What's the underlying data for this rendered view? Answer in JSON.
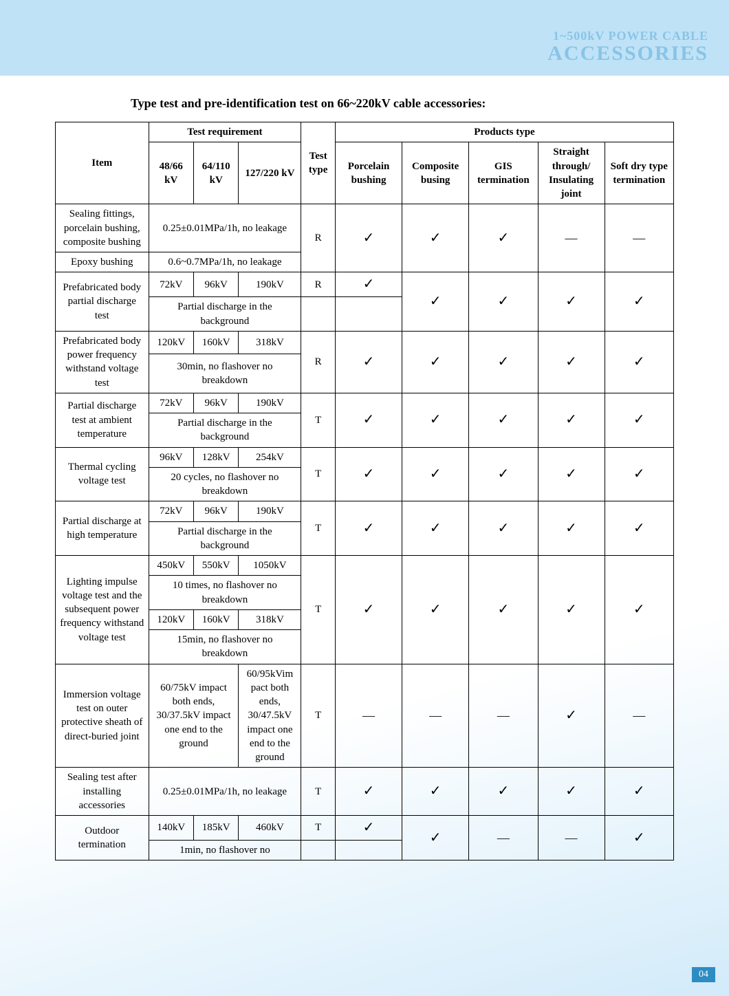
{
  "header": {
    "line1": "1~500kV POWER CABLE",
    "line2": "ACCESSORIES"
  },
  "title": "Type test and pre-identification test on 66~220kV cable accessories:",
  "page_number": "04",
  "check": "√",
  "dash": "—",
  "hdr": {
    "item": "Item",
    "test_req": "Test requirement",
    "test_type": "Test type",
    "prod_type": "Products type",
    "kv1": "48/66 kV",
    "kv2": "64/110 kV",
    "kv3": "127/220 kV",
    "p1": "Porcelain bushing",
    "p2": "Composite busing",
    "p3": "GIS termination",
    "p4": "Straight through/ Insulating joint",
    "p5": "Soft dry type termination"
  },
  "r1": {
    "item": "Sealing fittings, porcelain bushing, composite bushing",
    "req": "0.25±0.01MPa/1h, no leakage"
  },
  "r1b": {
    "item": "Epoxy bushing",
    "req": "0.6~0.7MPa/1h, no leakage"
  },
  "r1_tt": "R",
  "r1_c": [
    "✓",
    "✓",
    "✓",
    "—",
    "—"
  ],
  "r2": {
    "item": "Prefabricated body partial discharge test",
    "v": [
      "72kV",
      "96kV",
      "190kV"
    ],
    "note": "Partial discharge in the background",
    "tt": "R"
  },
  "r2_c": [
    "✓",
    "✓",
    "✓",
    "✓",
    "✓"
  ],
  "r3": {
    "item": "Prefabricated body power frequency withstand voltage test",
    "v": [
      "120kV",
      "160kV",
      "318kV"
    ],
    "note": "30min, no flashover no breakdown",
    "tt": "R"
  },
  "r3_c": [
    "✓",
    "✓",
    "✓",
    "✓",
    "✓"
  ],
  "r4": {
    "item": "Partial discharge test at ambient temperature",
    "v": [
      "72kV",
      "96kV",
      "190kV"
    ],
    "note": "Partial discharge in the background",
    "tt": "T"
  },
  "r4_c": [
    "✓",
    "✓",
    "✓",
    "✓",
    "✓"
  ],
  "r5": {
    "item": "Thermal cycling voltage test",
    "v": [
      "96kV",
      "128kV",
      "254kV"
    ],
    "note": "20 cycles, no flashover no breakdown",
    "tt": "T"
  },
  "r5_c": [
    "✓",
    "✓",
    "✓",
    "✓",
    "✓"
  ],
  "r6": {
    "item": "Partial discharge at high temperature",
    "v": [
      "72kV",
      "96kV",
      "190kV"
    ],
    "note": "Partial discharge in the background",
    "tt": "T"
  },
  "r6_c": [
    "✓",
    "✓",
    "✓",
    "✓",
    "✓"
  ],
  "r7": {
    "item": "Lighting impulse voltage test and the subsequent power frequency withstand voltage test",
    "va": [
      "450kV",
      "550kV",
      "1050kV"
    ],
    "notea": "10 times, no flashover no breakdown",
    "vb": [
      "120kV",
      "160kV",
      "318kV"
    ],
    "noteb": "15min, no flashover no breakdown",
    "tt": "T"
  },
  "r7_c": [
    "✓",
    "✓",
    "✓",
    "✓",
    "✓"
  ],
  "r8": {
    "item": "Immersion voltage test on outer protective sheath of direct-buried joint",
    "reqa": "60/75kV impact both ends, 30/37.5kV impact one end to the ground",
    "reqb": "60/95kVim pact both ends, 30/47.5kV impact one end to the ground",
    "tt": "T"
  },
  "r8_c": [
    "—",
    "—",
    "—",
    "✓",
    "—"
  ],
  "r9": {
    "item": "Sealing test after installing accessories",
    "req": "0.25±0.01MPa/1h, no leakage",
    "tt": "T"
  },
  "r9_c": [
    "✓",
    "✓",
    "✓",
    "✓",
    "✓"
  ],
  "r10": {
    "item": "Outdoor termination",
    "v": [
      "140kV",
      "185kV",
      "460kV"
    ],
    "note": "1min, no flashover no",
    "tt": "T"
  },
  "r10_c": [
    "✓",
    "✓",
    "—",
    "—",
    "✓"
  ]
}
